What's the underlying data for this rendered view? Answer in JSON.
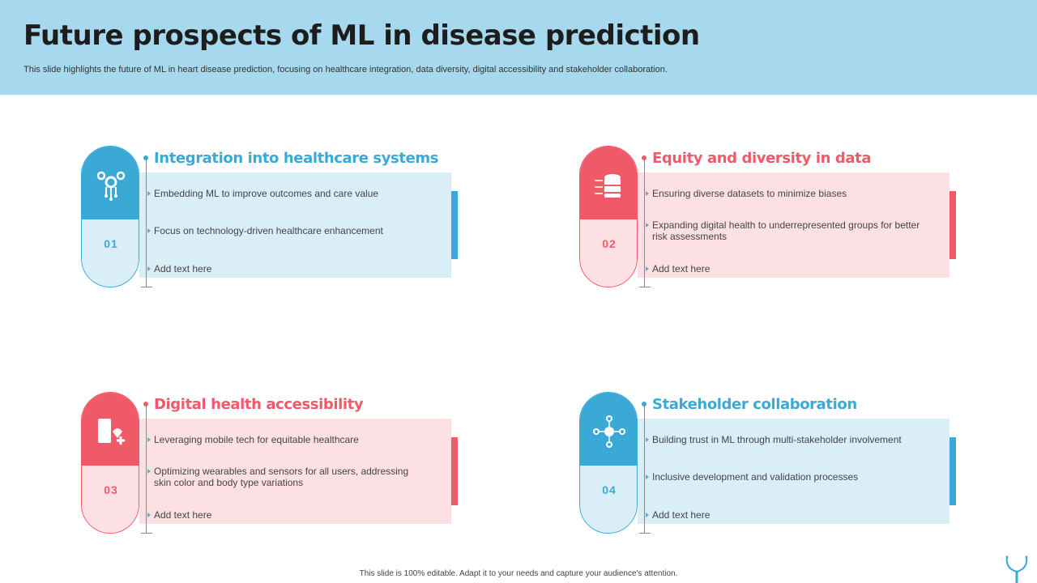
{
  "header": {
    "title": "Future prospects of ML in disease prediction",
    "subtitle": "This slide highlights the future of ML in heart disease prediction, focusing on healthcare integration, data diversity, digital accessibility and stakeholder collaboration."
  },
  "colors": {
    "blue": "#3aa9d6",
    "red": "#f05a68",
    "header_bg": "#a6d8ee"
  },
  "cards": [
    {
      "number": "01",
      "title": "Integration into healthcare systems",
      "icon": "gears-network-icon",
      "bullets": [
        "Embedding ML to improve outcomes and care value",
        "Focus on technology-driven healthcare enhancement",
        "Add text here"
      ]
    },
    {
      "number": "02",
      "title": "Equity and diversity in data",
      "icon": "database-icon",
      "bullets": [
        "Ensuring diverse datasets to minimize biases",
        "Expanding digital health to underrepresented groups for better risk assessments",
        "Add text here"
      ]
    },
    {
      "number": "03",
      "title": "Digital health accessibility",
      "icon": "mobile-health-icon",
      "bullets": [
        "Leveraging mobile tech for equitable healthcare",
        "Optimizing wearables and sensors for all users, addressing skin color and body type variations",
        "Add text here"
      ]
    },
    {
      "number": "04",
      "title": "Stakeholder collaboration",
      "icon": "stakeholder-network-icon",
      "bullets": [
        "Building trust in ML through multi-stakeholder involvement",
        "Inclusive development and validation processes",
        "Add text here"
      ]
    }
  ],
  "footer": "This slide is 100% editable. Adapt it to your needs and capture your audience's attention."
}
